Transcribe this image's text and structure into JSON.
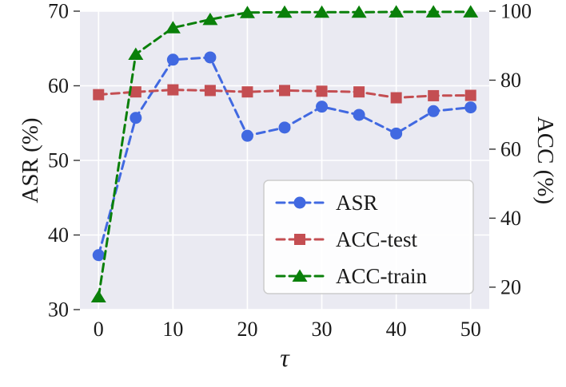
{
  "chart_data": {
    "type": "line",
    "title": "",
    "xlabel": "τ",
    "ylabel_left": "ASR (%)",
    "ylabel_right": "ACC (%)",
    "x": [
      0,
      5,
      10,
      15,
      20,
      25,
      30,
      35,
      40,
      45,
      50
    ],
    "x_ticks": [
      0,
      10,
      20,
      30,
      40,
      50
    ],
    "x_lim": [
      -2.5,
      52.5
    ],
    "left_ticks": [
      30,
      40,
      50,
      60,
      70
    ],
    "left_lim": [
      30,
      70
    ],
    "right_ticks": [
      20,
      40,
      60,
      80,
      100
    ],
    "right_lim": [
      13.5,
      100
    ],
    "grid": true,
    "legend_position": "lower right",
    "plot_bg_color": "#eaeaf2",
    "grid_color": "#ffffff",
    "text_color": "#1a1a1a",
    "legend_border_color": "#cccccc",
    "series": [
      {
        "name": "ASR",
        "axis": "left",
        "color": "#4169e1",
        "marker": "circle",
        "linestyle": "dashed",
        "values": [
          37.3,
          55.7,
          63.5,
          63.8,
          53.3,
          54.4,
          57.2,
          56.1,
          53.6,
          56.6,
          57.1
        ]
      },
      {
        "name": "ACC-test",
        "axis": "right",
        "color": "#c44e52",
        "marker": "square",
        "linestyle": "dashed",
        "values": [
          75.8,
          76.6,
          77.2,
          77.0,
          76.6,
          77.0,
          76.8,
          76.6,
          74.9,
          75.5,
          75.6
        ]
      },
      {
        "name": "ACC-train",
        "axis": "right",
        "color": "#0a800a",
        "marker": "triangle",
        "linestyle": "dashed",
        "values": [
          17.2,
          87.5,
          95.2,
          97.6,
          99.6,
          99.7,
          99.7,
          99.7,
          99.8,
          99.8,
          99.8
        ]
      }
    ]
  }
}
